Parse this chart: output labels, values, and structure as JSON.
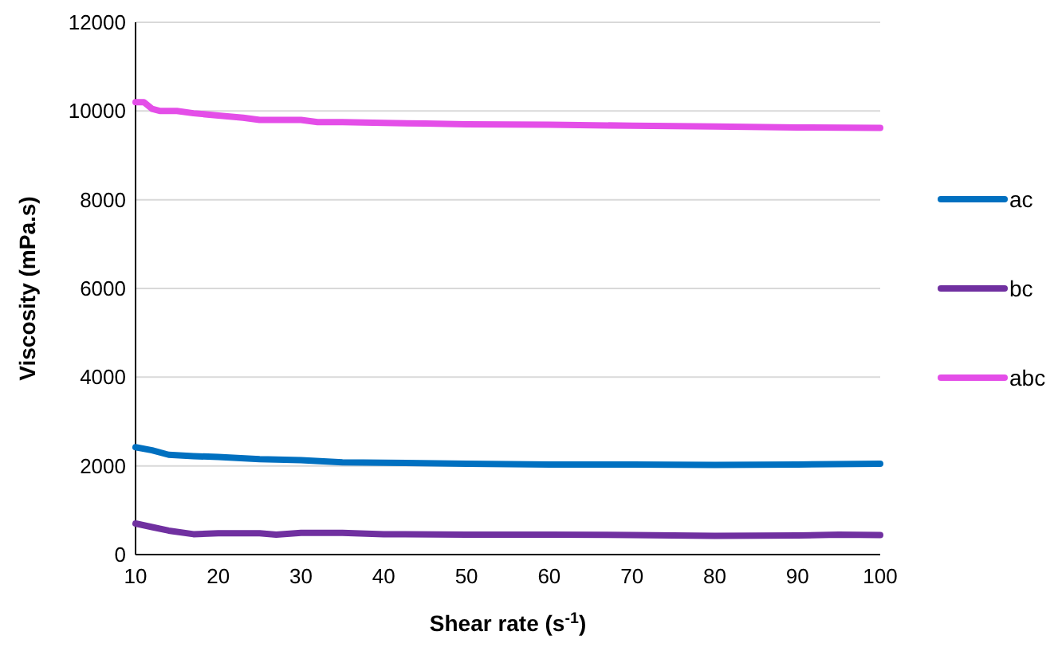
{
  "chart_data": {
    "type": "line",
    "xlabel": "Shear rate (s$^{-1}$)",
    "ylabel": "Viscosity (mPa.s)",
    "xlim": [
      10,
      100
    ],
    "xticks": [
      10,
      20,
      30,
      40,
      50,
      60,
      70,
      80,
      90,
      100
    ],
    "ylim": [
      0,
      12000
    ],
    "yticks": [
      0,
      2000,
      4000,
      6000,
      8000,
      10000,
      12000
    ],
    "grid": "y",
    "legend": "right",
    "marker": "none",
    "line_style": "solid",
    "series": [
      {
        "name": "ac",
        "color": "#0070c0",
        "x": [
          10,
          12,
          14,
          17,
          20,
          25,
          30,
          35,
          40,
          50,
          60,
          70,
          80,
          90,
          100
        ],
        "values": [
          2420,
          2350,
          2250,
          2220,
          2200,
          2150,
          2130,
          2080,
          2070,
          2050,
          2030,
          2030,
          2020,
          2030,
          2050
        ]
      },
      {
        "name": "bc",
        "color": "#7030a0",
        "x": [
          10,
          12,
          14,
          17,
          20,
          25,
          27,
          30,
          35,
          40,
          50,
          60,
          70,
          80,
          90,
          95,
          100
        ],
        "values": [
          700,
          620,
          540,
          460,
          480,
          480,
          450,
          490,
          490,
          460,
          450,
          450,
          440,
          420,
          430,
          450,
          440
        ]
      },
      {
        "name": "abc",
        "color": "#e44ee8",
        "x": [
          10,
          11,
          12,
          13,
          15,
          17,
          20,
          23,
          25,
          30,
          32,
          35,
          40,
          45,
          50,
          60,
          70,
          80,
          90,
          100
        ],
        "values": [
          10200,
          10200,
          10050,
          10000,
          10000,
          9950,
          9900,
          9850,
          9800,
          9800,
          9750,
          9750,
          9730,
          9720,
          9700,
          9690,
          9670,
          9650,
          9630,
          9620
        ]
      }
    ]
  }
}
